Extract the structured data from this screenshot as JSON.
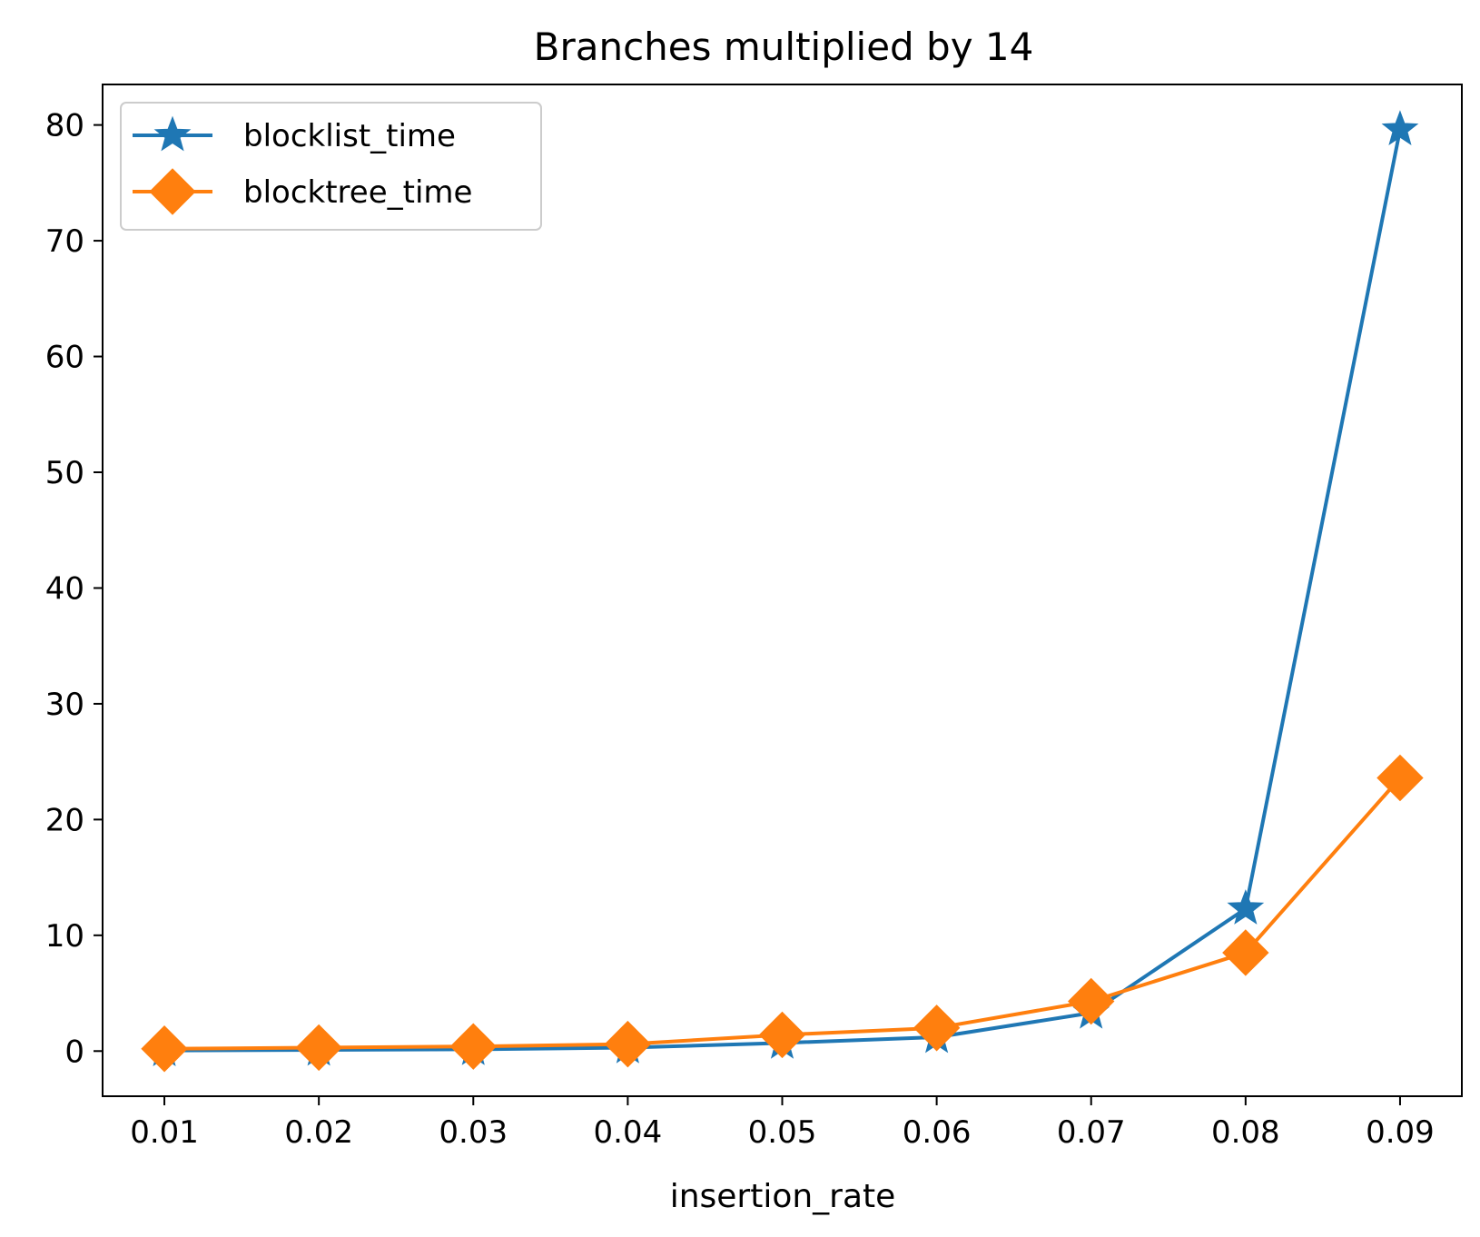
{
  "chart_data": {
    "type": "line",
    "title": "Branches multiplied by 14",
    "xlabel": "insertion_rate",
    "ylabel": "",
    "x": [
      0.01,
      0.02,
      0.03,
      0.04,
      0.05,
      0.06,
      0.07,
      0.08,
      0.09
    ],
    "x_tick_labels": [
      "0.01",
      "0.02",
      "0.03",
      "0.04",
      "0.05",
      "0.06",
      "0.07",
      "0.08",
      "0.09"
    ],
    "y_ticks": [
      0,
      10,
      20,
      30,
      40,
      50,
      60,
      70,
      80
    ],
    "y_tick_labels": [
      "0",
      "10",
      "20",
      "30",
      "40",
      "50",
      "60",
      "70",
      "80"
    ],
    "xlim": [
      0.006,
      0.094
    ],
    "ylim": [
      -3.9,
      83.5
    ],
    "grid": false,
    "legend_position": "top-left",
    "series": [
      {
        "name": "blocklist_time",
        "marker": "star",
        "color": "#1f77b4",
        "values": [
          0.05,
          0.1,
          0.15,
          0.3,
          0.7,
          1.2,
          3.3,
          12.3,
          79.6
        ]
      },
      {
        "name": "blocktree_time",
        "marker": "diamond",
        "color": "#ff7f0e",
        "values": [
          0.2,
          0.3,
          0.4,
          0.6,
          1.4,
          2.0,
          4.3,
          8.5,
          23.6
        ]
      }
    ]
  }
}
